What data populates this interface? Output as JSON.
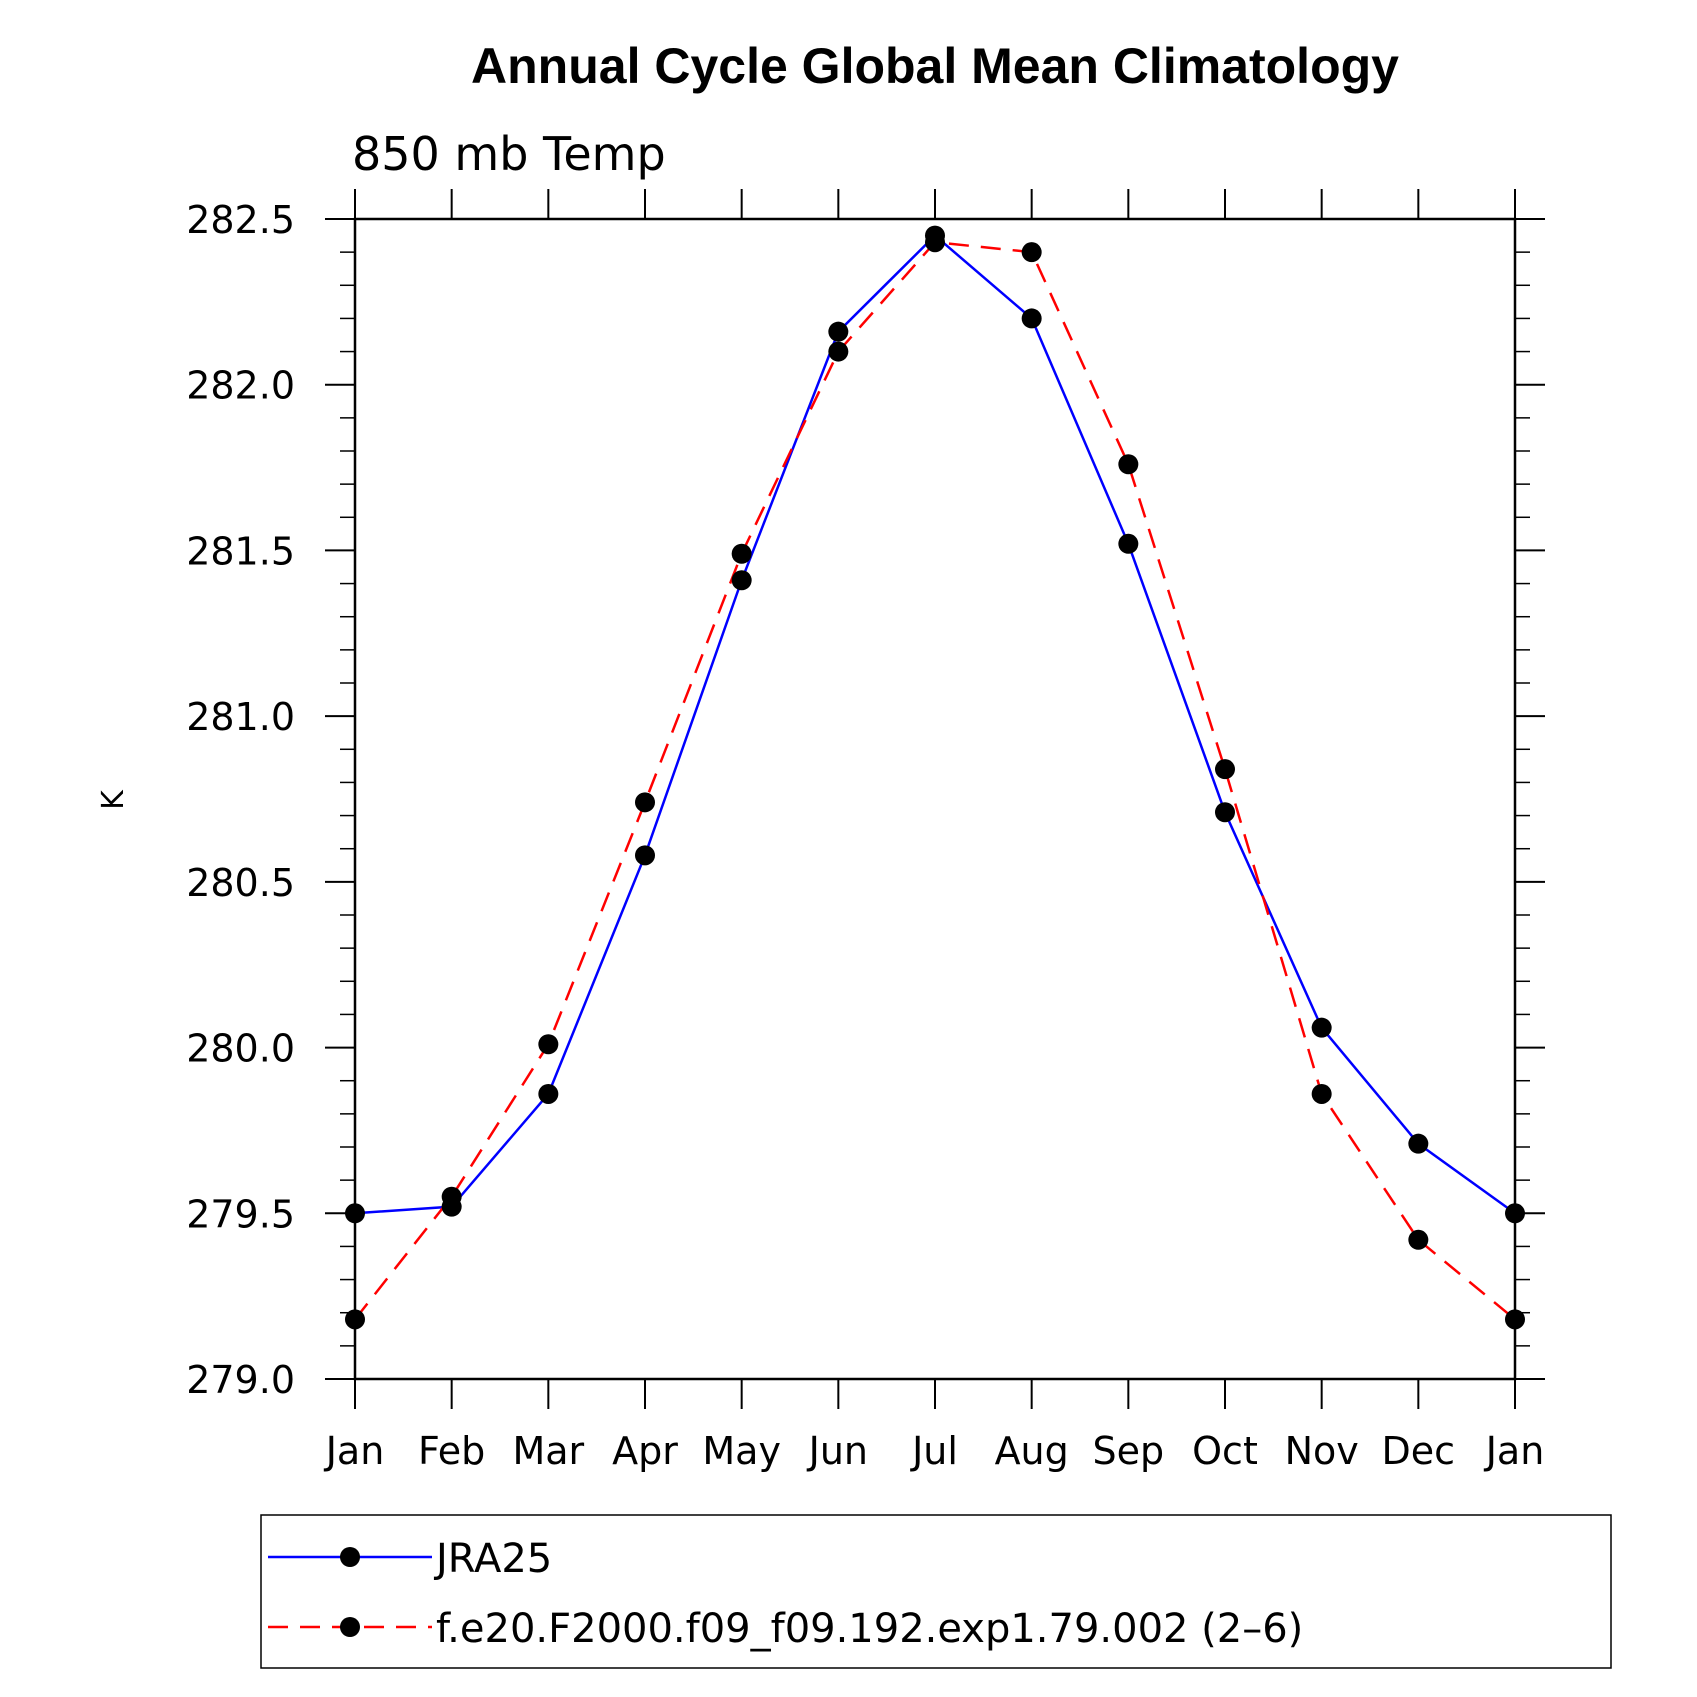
{
  "chart_data": {
    "type": "line",
    "title": "Annual Cycle Global Mean Climatology",
    "subtitle": "850 mb Temp",
    "xlabel": "",
    "ylabel": "K",
    "categories": [
      "Jan",
      "Feb",
      "Mar",
      "Apr",
      "May",
      "Jun",
      "Jul",
      "Aug",
      "Sep",
      "Oct",
      "Nov",
      "Dec",
      "Jan"
    ],
    "ylim": [
      279.0,
      282.5
    ],
    "yticks": [
      279.0,
      279.5,
      280.0,
      280.5,
      281.0,
      281.5,
      282.0,
      282.5
    ],
    "ytick_labels": [
      "279.0",
      "279.5",
      "280.0",
      "280.5",
      "281.0",
      "281.5",
      "282.0",
      "282.5"
    ],
    "series": [
      {
        "name": "JRA25",
        "color": "#0000ff",
        "line_style": "solid",
        "marker": "filled-circle",
        "values": [
          279.5,
          279.52,
          279.86,
          280.58,
          281.41,
          282.16,
          282.45,
          282.2,
          281.52,
          280.71,
          280.06,
          279.71,
          279.5
        ]
      },
      {
        "name": "f.e20.F2000.f09_f09.192.exp1.79.002 (2–6)",
        "color": "#ff0000",
        "line_style": "dashed",
        "marker": "filled-circle",
        "values": [
          279.18,
          279.55,
          280.01,
          280.74,
          281.49,
          282.1,
          282.43,
          282.4,
          281.76,
          280.84,
          279.86,
          279.42,
          279.18
        ]
      }
    ],
    "grid": false,
    "legend_position": "bottom"
  }
}
